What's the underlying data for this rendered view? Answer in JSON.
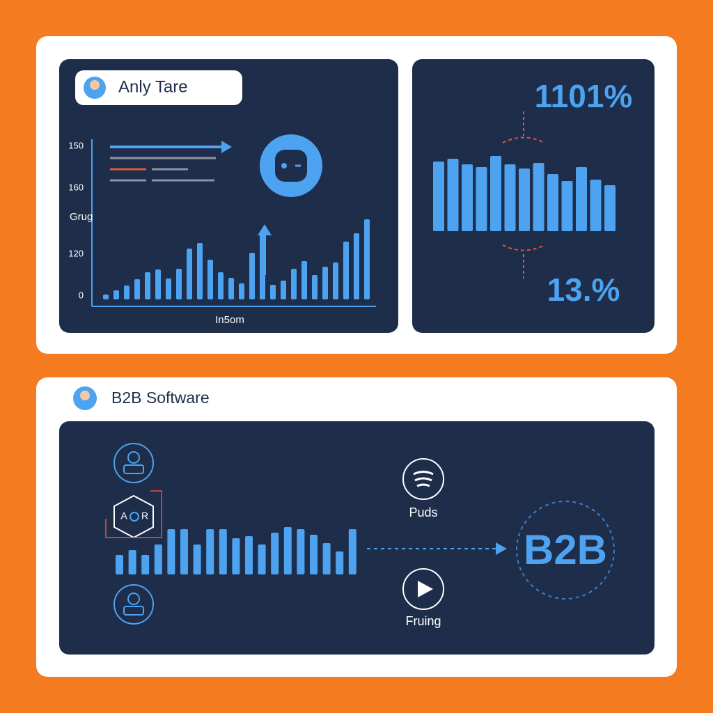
{
  "top_card": {
    "user_name": "Anly Tare",
    "y_labels": [
      "150",
      "160",
      "120",
      "0"
    ],
    "y_title": "Grug",
    "x_title": "In5om",
    "bars": [
      14,
      26,
      40,
      58,
      78,
      86,
      60,
      88,
      146,
      162,
      114,
      78,
      62,
      46,
      134,
      190,
      42,
      54,
      88,
      110,
      70,
      94,
      106,
      166,
      190,
      230
    ]
  },
  "right_panel": {
    "top_stat": "1101%",
    "bottom_stat": "13.%",
    "bars": [
      100,
      104,
      96,
      92,
      108,
      96,
      90,
      98,
      82,
      72,
      92,
      74,
      66
    ]
  },
  "bottom_card": {
    "title": "B2B Software",
    "hex_left": "A",
    "hex_right": "R",
    "item_1": "Puds",
    "item_2": "Fruing",
    "target": "B2B",
    "bars": [
      28,
      35,
      28,
      43,
      65,
      65,
      43,
      65,
      65,
      52,
      55,
      43,
      60,
      68,
      65,
      57,
      45,
      33,
      65
    ]
  }
}
